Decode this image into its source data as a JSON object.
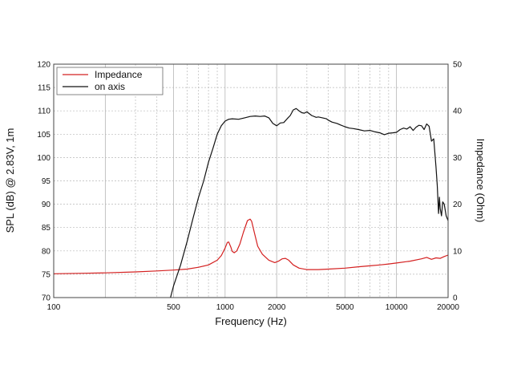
{
  "chart_data": {
    "type": "line",
    "title": "",
    "xlabel": "Frequency (Hz)",
    "ylabel_left": "SPL (dB) @ 2.83V, 1m",
    "ylabel_right": "Impedance (Ohm)",
    "x_scale": "log",
    "xlim": [
      100,
      20000
    ],
    "ylim_left": [
      70,
      120
    ],
    "ylim_right": [
      0,
      50
    ],
    "grid": true,
    "legend_position": "top-left",
    "x_ticks": [
      "100",
      "500",
      "1000",
      "2000",
      "5000",
      "10000",
      "20000"
    ],
    "x_tick_values": [
      100,
      500,
      1000,
      2000,
      5000,
      10000,
      20000
    ],
    "y_left_ticks": [
      "70",
      "75",
      "80",
      "85",
      "90",
      "95",
      "100",
      "105",
      "110",
      "115",
      "120"
    ],
    "y_right_ticks": [
      "0",
      "10",
      "20",
      "30",
      "40",
      "50"
    ],
    "series": [
      {
        "name": "Impedance",
        "axis": "right",
        "color": "#d42020",
        "x": [
          100,
          150,
          200,
          300,
          400,
          500,
          600,
          700,
          800,
          900,
          950,
          1000,
          1030,
          1050,
          1080,
          1100,
          1130,
          1170,
          1220,
          1280,
          1350,
          1400,
          1430,
          1480,
          1550,
          1650,
          1800,
          1950,
          2050,
          2150,
          2250,
          2350,
          2500,
          2700,
          3000,
          3500,
          4000,
          5000,
          6000,
          7000,
          8000,
          9000,
          10000,
          12000,
          14000,
          15000,
          16000,
          17000,
          18000,
          19000,
          20000
        ],
        "y": [
          5.1,
          5.2,
          5.3,
          5.5,
          5.7,
          5.9,
          6.1,
          6.5,
          7.0,
          8.0,
          9.0,
          10.6,
          11.8,
          11.9,
          10.8,
          9.9,
          9.6,
          10.0,
          11.5,
          14.0,
          16.5,
          16.8,
          16.3,
          14.0,
          11.0,
          9.3,
          8.0,
          7.5,
          7.8,
          8.3,
          8.4,
          8.0,
          7.0,
          6.3,
          6.0,
          6.0,
          6.1,
          6.3,
          6.6,
          6.8,
          7.0,
          7.2,
          7.4,
          7.8,
          8.3,
          8.6,
          8.2,
          8.5,
          8.4,
          8.8,
          9.1
        ]
      },
      {
        "name": "on axis",
        "axis": "left",
        "color": "#111111",
        "x": [
          480,
          500,
          550,
          600,
          650,
          700,
          750,
          800,
          850,
          900,
          950,
          1000,
          1050,
          1100,
          1200,
          1300,
          1400,
          1500,
          1600,
          1700,
          1800,
          1900,
          2000,
          2100,
          2200,
          2300,
          2400,
          2500,
          2600,
          2700,
          2800,
          2900,
          3000,
          3200,
          3400,
          3500,
          3700,
          3900,
          4000,
          4200,
          4500,
          4700,
          5000,
          5300,
          5600,
          6000,
          6500,
          7000,
          7500,
          8000,
          8500,
          9000,
          9500,
          10000,
          10500,
          11000,
          11500,
          12000,
          12500,
          13000,
          13500,
          14000,
          14500,
          15000,
          15500,
          16000,
          16500,
          17000,
          17300,
          17600,
          17800,
          18000,
          18300,
          18600,
          19000,
          19500,
          20000
        ],
        "y": [
          70.0,
          72.5,
          77.0,
          82.0,
          87.0,
          91.5,
          95.0,
          99.0,
          102.0,
          105.0,
          106.8,
          107.8,
          108.2,
          108.3,
          108.2,
          108.5,
          108.8,
          108.9,
          108.8,
          108.9,
          108.5,
          107.3,
          106.8,
          107.4,
          107.5,
          108.3,
          109.0,
          110.2,
          110.5,
          110.0,
          109.6,
          109.5,
          109.8,
          109.0,
          108.6,
          108.7,
          108.5,
          108.3,
          108.0,
          107.6,
          107.3,
          107.0,
          106.6,
          106.3,
          106.2,
          106.0,
          105.7,
          105.8,
          105.5,
          105.3,
          104.9,
          105.2,
          105.3,
          105.4,
          106.0,
          106.3,
          106.1,
          106.6,
          105.8,
          106.5,
          106.9,
          106.8,
          106.0,
          107.2,
          106.7,
          103.5,
          104.0,
          98.0,
          94.0,
          88.0,
          91.5,
          89.0,
          87.5,
          90.5,
          90.0,
          87.5,
          86.5
        ]
      }
    ]
  }
}
